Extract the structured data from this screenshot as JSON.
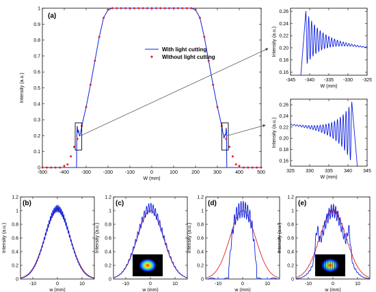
{
  "colors": {
    "blue": "#0a1de0",
    "red": "#e02020",
    "axis": "#000000",
    "annotation_arrow": "#404040"
  },
  "chart_data": [
    {
      "id": "a",
      "panel_label": "(a)",
      "type": "line",
      "xlabel": "W (mm)",
      "ylabel": "Intensity (a.u.)",
      "xlim": [
        -500,
        500
      ],
      "ylim": [
        0,
        1
      ],
      "xticks": [
        -500,
        -400,
        -300,
        -200,
        -100,
        0,
        100,
        200,
        300,
        400,
        500
      ],
      "yticks": [
        0,
        0.1,
        0.2,
        0.3,
        0.4,
        0.5,
        0.6,
        0.7,
        0.8,
        0.9,
        1
      ],
      "legend": {
        "position": "inside-upper-right",
        "entries": [
          "With light cutting",
          "Without light cutting"
        ]
      },
      "series": [
        {
          "name": "With light cutting",
          "style": "line",
          "color": "#0a1de0",
          "profile": "flat-top",
          "x_edge_mm": 340,
          "points": [
            [
              -500,
              0
            ],
            [
              -360,
              0
            ],
            [
              -350,
              0
            ],
            [
              -342,
              0.15
            ],
            [
              -341,
              0.26
            ],
            [
              -338,
              0.2
            ],
            [
              -335,
              0.22
            ],
            [
              -330,
              0.19
            ],
            [
              -320,
              0.26
            ],
            [
              -300,
              0.38
            ],
            [
              -280,
              0.52
            ],
            [
              -260,
              0.67
            ],
            [
              -240,
              0.82
            ],
            [
              -220,
              0.94
            ],
            [
              -200,
              0.99
            ],
            [
              -180,
              1
            ],
            [
              0,
              1
            ],
            [
              180,
              1
            ],
            [
              200,
              0.99
            ],
            [
              220,
              0.94
            ],
            [
              240,
              0.82
            ],
            [
              260,
              0.67
            ],
            [
              280,
              0.52
            ],
            [
              300,
              0.38
            ],
            [
              320,
              0.26
            ],
            [
              330,
              0.19
            ],
            [
              335,
              0.22
            ],
            [
              338,
              0.2
            ],
            [
              341,
              0.26
            ],
            [
              342,
              0.15
            ],
            [
              350,
              0
            ],
            [
              360,
              0
            ],
            [
              500,
              0
            ]
          ]
        },
        {
          "name": "Without light cutting",
          "style": "markers",
          "color": "#e02020",
          "points": [
            [
              -500,
              0
            ],
            [
              -480,
              0
            ],
            [
              -460,
              0
            ],
            [
              -440,
              0
            ],
            [
              -420,
              0
            ],
            [
              -400,
              0.01
            ],
            [
              -385,
              0.02
            ],
            [
              -370,
              0.07
            ],
            [
              -355,
              0.13
            ],
            [
              -340,
              0.18
            ],
            [
              -320,
              0.26
            ],
            [
              -300,
              0.38
            ],
            [
              -280,
              0.52
            ],
            [
              -260,
              0.67
            ],
            [
              -240,
              0.82
            ],
            [
              -220,
              0.94
            ],
            [
              -200,
              0.99
            ],
            [
              -180,
              1
            ],
            [
              -160,
              1
            ],
            [
              -140,
              1
            ],
            [
              -120,
              1
            ],
            [
              -100,
              1
            ],
            [
              -80,
              1
            ],
            [
              -60,
              1
            ],
            [
              -40,
              1
            ],
            [
              -20,
              1
            ],
            [
              0,
              1
            ],
            [
              20,
              1
            ],
            [
              40,
              1
            ],
            [
              60,
              1
            ],
            [
              80,
              1
            ],
            [
              100,
              1
            ],
            [
              120,
              1
            ],
            [
              140,
              1
            ],
            [
              160,
              1
            ],
            [
              180,
              1
            ],
            [
              200,
              0.99
            ],
            [
              220,
              0.94
            ],
            [
              240,
              0.82
            ],
            [
              260,
              0.67
            ],
            [
              280,
              0.52
            ],
            [
              300,
              0.38
            ],
            [
              320,
              0.26
            ],
            [
              340,
              0.18
            ],
            [
              355,
              0.13
            ],
            [
              370,
              0.07
            ],
            [
              385,
              0.02
            ],
            [
              400,
              0.01
            ],
            [
              420,
              0
            ],
            [
              440,
              0
            ],
            [
              460,
              0
            ],
            [
              480,
              0
            ],
            [
              500,
              0
            ]
          ]
        }
      ],
      "zoom_boxes": [
        {
          "xrange": [
            -345,
            -325
          ],
          "yrange": [
            0.16,
            0.28
          ],
          "target": "inset-left-edge"
        },
        {
          "xrange": [
            325,
            345
          ],
          "yrange": [
            0.16,
            0.28
          ],
          "target": "inset-right-edge"
        }
      ]
    },
    {
      "id": "inset-left-edge",
      "type": "line",
      "xlabel": "W (mm)",
      "ylabel": "Intensity (a.u.)",
      "xlim": [
        -345,
        -325
      ],
      "ylim": [
        0.155,
        0.265
      ],
      "xticks": [
        -345,
        -340,
        -335,
        -330,
        -325
      ],
      "yticks": [
        0.16,
        0.18,
        0.2,
        0.22,
        0.24,
        0.26
      ],
      "series": [
        {
          "name": "With light cutting",
          "color": "#0a1de0",
          "oscillation": "decaying-ripple",
          "edge_x": -341,
          "peak_y": 0.26,
          "center_y": 0.215,
          "first_amp": 0.045,
          "decay": 0.12,
          "period": 1.5,
          "trend_slope": -0.0009
        }
      ]
    },
    {
      "id": "inset-right-edge",
      "type": "line",
      "xlabel": "W (mm)",
      "ylabel": "Intensity (a.u.)",
      "xlim": [
        325,
        345
      ],
      "ylim": [
        0.15,
        0.27
      ],
      "xticks": [
        325,
        330,
        335,
        340,
        345
      ],
      "yticks": [
        0.16,
        0.18,
        0.2,
        0.22,
        0.24,
        0.26
      ],
      "series": [
        {
          "name": "With light cutting",
          "color": "#0a1de0",
          "oscillation": "decaying-ripple",
          "edge_x": 341,
          "peak_y": 0.265,
          "center_y": 0.21,
          "first_amp": 0.055,
          "decay": 0.12,
          "period": 1.5,
          "trend_slope": 0.0009
        }
      ]
    },
    {
      "id": "b",
      "panel_label": "(b)",
      "type": "line",
      "xlabel": "w (mm)",
      "ylabel": "Intensity (a.u.)",
      "xlim": [
        -15,
        15
      ],
      "ylim": [
        0,
        1.2
      ],
      "xticks": [
        -10,
        0,
        10
      ],
      "yticks": [
        0,
        0.2,
        0.4,
        0.6,
        0.8,
        1,
        1.2
      ],
      "series": [
        {
          "name": "blue",
          "color": "#0a1de0",
          "shape": "gaussian",
          "sigma": 5.0,
          "peak": 1.03,
          "ripple_amp": 0.05,
          "ripple_period": 0.5
        },
        {
          "name": "red",
          "color": "#e02020",
          "shape": "gaussian",
          "sigma": 5.2,
          "peak": 1.0
        }
      ]
    },
    {
      "id": "c",
      "panel_label": "(c)",
      "type": "line",
      "xlabel": "w (mm)",
      "ylabel": "Intensity (a.u.)",
      "xlim": [
        -15,
        15
      ],
      "ylim": [
        0,
        1.2
      ],
      "xticks": [
        -10,
        0,
        10
      ],
      "yticks": [
        0,
        0.2,
        0.4,
        0.6,
        0.8,
        1,
        1.2
      ],
      "inset_image": "beam-profile-gaussian",
      "series": [
        {
          "name": "blue",
          "color": "#0a1de0",
          "shape": "gaussian",
          "sigma": 5.3,
          "peak": 1.04,
          "ripple_amp": 0.07,
          "ripple_period": 0.9
        },
        {
          "name": "red",
          "color": "#e02020",
          "shape": "gaussian",
          "sigma": 5.3,
          "peak": 1.0
        }
      ]
    },
    {
      "id": "d",
      "panel_label": "(d)",
      "type": "line",
      "xlabel": "w (mm)",
      "ylabel": "Intensity (a.u.)",
      "xlim": [
        -15,
        15
      ],
      "ylim": [
        0,
        1.2
      ],
      "xticks": [
        -10,
        0,
        10
      ],
      "yticks": [
        0,
        0.2,
        0.4,
        0.6,
        0.8,
        1,
        1.2
      ],
      "series": [
        {
          "name": "blue",
          "color": "#0a1de0",
          "shape": "supergaussian-cut",
          "width": 4.5,
          "peak": 1.02,
          "ripple_amp": 0.12,
          "ripple_period": 0.9
        },
        {
          "name": "red",
          "color": "#e02020",
          "shape": "gaussian",
          "sigma": 5.2,
          "peak": 1.0
        }
      ]
    },
    {
      "id": "e",
      "panel_label": "(e)",
      "type": "line",
      "xlabel": "w (mm)",
      "ylabel": "Intensity (a.u.)",
      "xlim": [
        -15,
        15
      ],
      "ylim": [
        0,
        1.2
      ],
      "xticks": [
        -10,
        0,
        10
      ],
      "yticks": [
        0,
        0.2,
        0.4,
        0.6,
        0.8,
        1,
        1.2
      ],
      "inset_image": "beam-profile-fringes",
      "series": [
        {
          "name": "blue",
          "color": "#0a1de0",
          "shape": "gaussian-side-lobes",
          "sigma": 4.6,
          "peak": 1.0,
          "ripple_amp": 0.1,
          "ripple_period": 0.9
        },
        {
          "name": "red",
          "color": "#e02020",
          "shape": "gaussian",
          "sigma": 5.4,
          "peak": 1.0,
          "ripple_amp": 0.03,
          "ripple_period": 0.7
        }
      ]
    }
  ]
}
